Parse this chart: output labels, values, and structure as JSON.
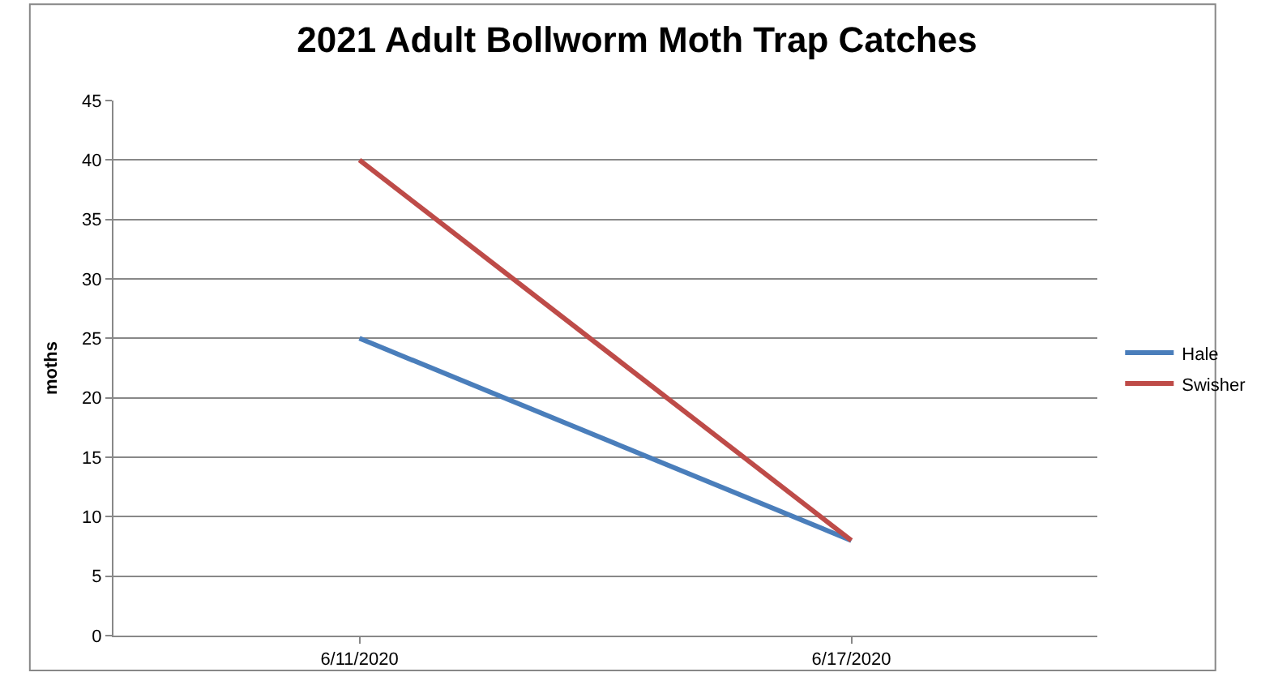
{
  "chart_data": {
    "type": "line",
    "title": "2021 Adult Bollworm Moth Trap Catches",
    "ylabel": "moths",
    "categories": [
      "6/11/2020",
      "6/17/2020"
    ],
    "series": [
      {
        "name": "Hale",
        "color": "#4a7ebb",
        "values": [
          25,
          8
        ]
      },
      {
        "name": "Swisher",
        "color": "#be4b48",
        "values": [
          40,
          8
        ]
      }
    ],
    "ylim": [
      0,
      45
    ],
    "yticks": [
      0,
      5,
      10,
      15,
      20,
      25,
      30,
      35,
      40,
      45
    ],
    "grid": "y",
    "legend": "right",
    "marker": "none",
    "line_style": "solid"
  }
}
